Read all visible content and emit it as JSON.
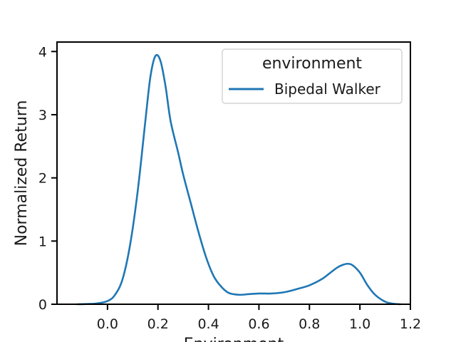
{
  "chart_data": {
    "type": "line",
    "title": "",
    "xlabel": "Environment",
    "ylabel": "Normalized Return",
    "xlim": [
      -0.2,
      1.2
    ],
    "ylim": [
      0,
      4.15
    ],
    "xticks": [
      0.0,
      0.2,
      0.4,
      0.6,
      0.8,
      1.0,
      1.2
    ],
    "xtick_labels": [
      "0.0",
      "0.2",
      "0.4",
      "0.6",
      "0.8",
      "1.0",
      "1.2"
    ],
    "yticks": [
      0,
      1,
      2,
      3,
      4
    ],
    "ytick_labels": [
      "0",
      "1",
      "2",
      "3",
      "4"
    ],
    "grid": false,
    "legend": {
      "title": "environment",
      "placement": "top-right"
    },
    "series": [
      {
        "name": "Bipedal Walker",
        "color": "#1f77b4",
        "x": [
          -0.12,
          -0.05,
          0.0,
          0.03,
          0.06,
          0.09,
          0.12,
          0.15,
          0.17,
          0.19,
          0.21,
          0.23,
          0.25,
          0.28,
          0.3,
          0.33,
          0.36,
          0.39,
          0.42,
          0.45,
          0.48,
          0.52,
          0.56,
          0.6,
          0.65,
          0.7,
          0.75,
          0.8,
          0.85,
          0.88,
          0.91,
          0.93,
          0.95,
          0.97,
          1.0,
          1.03,
          1.06,
          1.1,
          1.13,
          1.16
        ],
        "y": [
          0.0,
          0.01,
          0.05,
          0.15,
          0.4,
          0.95,
          1.8,
          2.9,
          3.6,
          3.93,
          3.85,
          3.45,
          2.9,
          2.4,
          2.05,
          1.6,
          1.15,
          0.75,
          0.45,
          0.28,
          0.18,
          0.15,
          0.16,
          0.17,
          0.17,
          0.19,
          0.24,
          0.3,
          0.4,
          0.49,
          0.58,
          0.62,
          0.64,
          0.62,
          0.5,
          0.3,
          0.15,
          0.04,
          0.01,
          0.0
        ]
      }
    ]
  }
}
